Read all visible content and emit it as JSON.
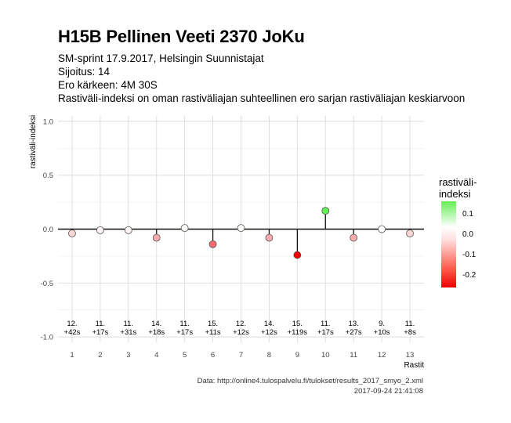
{
  "title": "H15B Pellinen Veeti 2370 JoKu",
  "subtitle_lines": [
    "SM-sprint 17.9.2017, Helsingin Suunnistajat",
    "Sijoitus: 14",
    "Ero kärkeen: 4M 30S",
    "Rastiväli-indeksi on oman rastiväliajan suhteellinen ero sarjan rastiväliajan keskiarvoon"
  ],
  "legend": {
    "title_line1": "rastiväli-",
    "title_line2": "indeksi",
    "ticks": [
      "0.1",
      "0.0",
      "-0.1",
      "-0.2"
    ]
  },
  "caption_source": "Data: http://online4.tulospalvelu.fi/tulokset/results_2017_smyo_2.xml",
  "caption_time": "2017-09-24 21:41:08",
  "chart_data": {
    "type": "scatter",
    "xlabel": "Rastit",
    "ylabel": "rastiväli-indeksi",
    "xlim": [
      0.5,
      13.5
    ],
    "ylim": [
      -1.05,
      1.05
    ],
    "y_ticks": [
      1.0,
      0.5,
      0.0,
      -0.5,
      -1.0
    ],
    "y_tick_labels": [
      "1.0",
      "0.5",
      "0.0",
      "-0.5",
      "-1.0"
    ],
    "x": [
      1,
      2,
      3,
      4,
      5,
      6,
      7,
      8,
      9,
      10,
      11,
      12,
      13
    ],
    "x_tick_labels": [
      "1",
      "2",
      "3",
      "4",
      "5",
      "6",
      "7",
      "8",
      "9",
      "10",
      "11",
      "12",
      "13"
    ],
    "values": [
      -0.04,
      -0.01,
      -0.01,
      -0.08,
      0.01,
      -0.14,
      0.01,
      -0.08,
      -0.24,
      0.17,
      -0.08,
      0.0,
      -0.04
    ],
    "point_labels": [
      [
        "12.",
        "+42s"
      ],
      [
        "11.",
        "+17s"
      ],
      [
        "11.",
        "+31s"
      ],
      [
        "14.",
        "+18s"
      ],
      [
        "11.",
        "+17s"
      ],
      [
        "15.",
        "+11s"
      ],
      [
        "12.",
        "+12s"
      ],
      [
        "14.",
        "+12s"
      ],
      [
        "15.",
        "+119s"
      ],
      [
        "11.",
        "+17s"
      ],
      [
        "13.",
        "+27s"
      ],
      [
        "9.",
        "+10s"
      ],
      [
        "11.",
        "+8s"
      ]
    ],
    "color_scale": {
      "high": "#66ee55",
      "mid": "#ffffff",
      "low": "#ee0000"
    },
    "grid": true,
    "legend_position": "right"
  }
}
